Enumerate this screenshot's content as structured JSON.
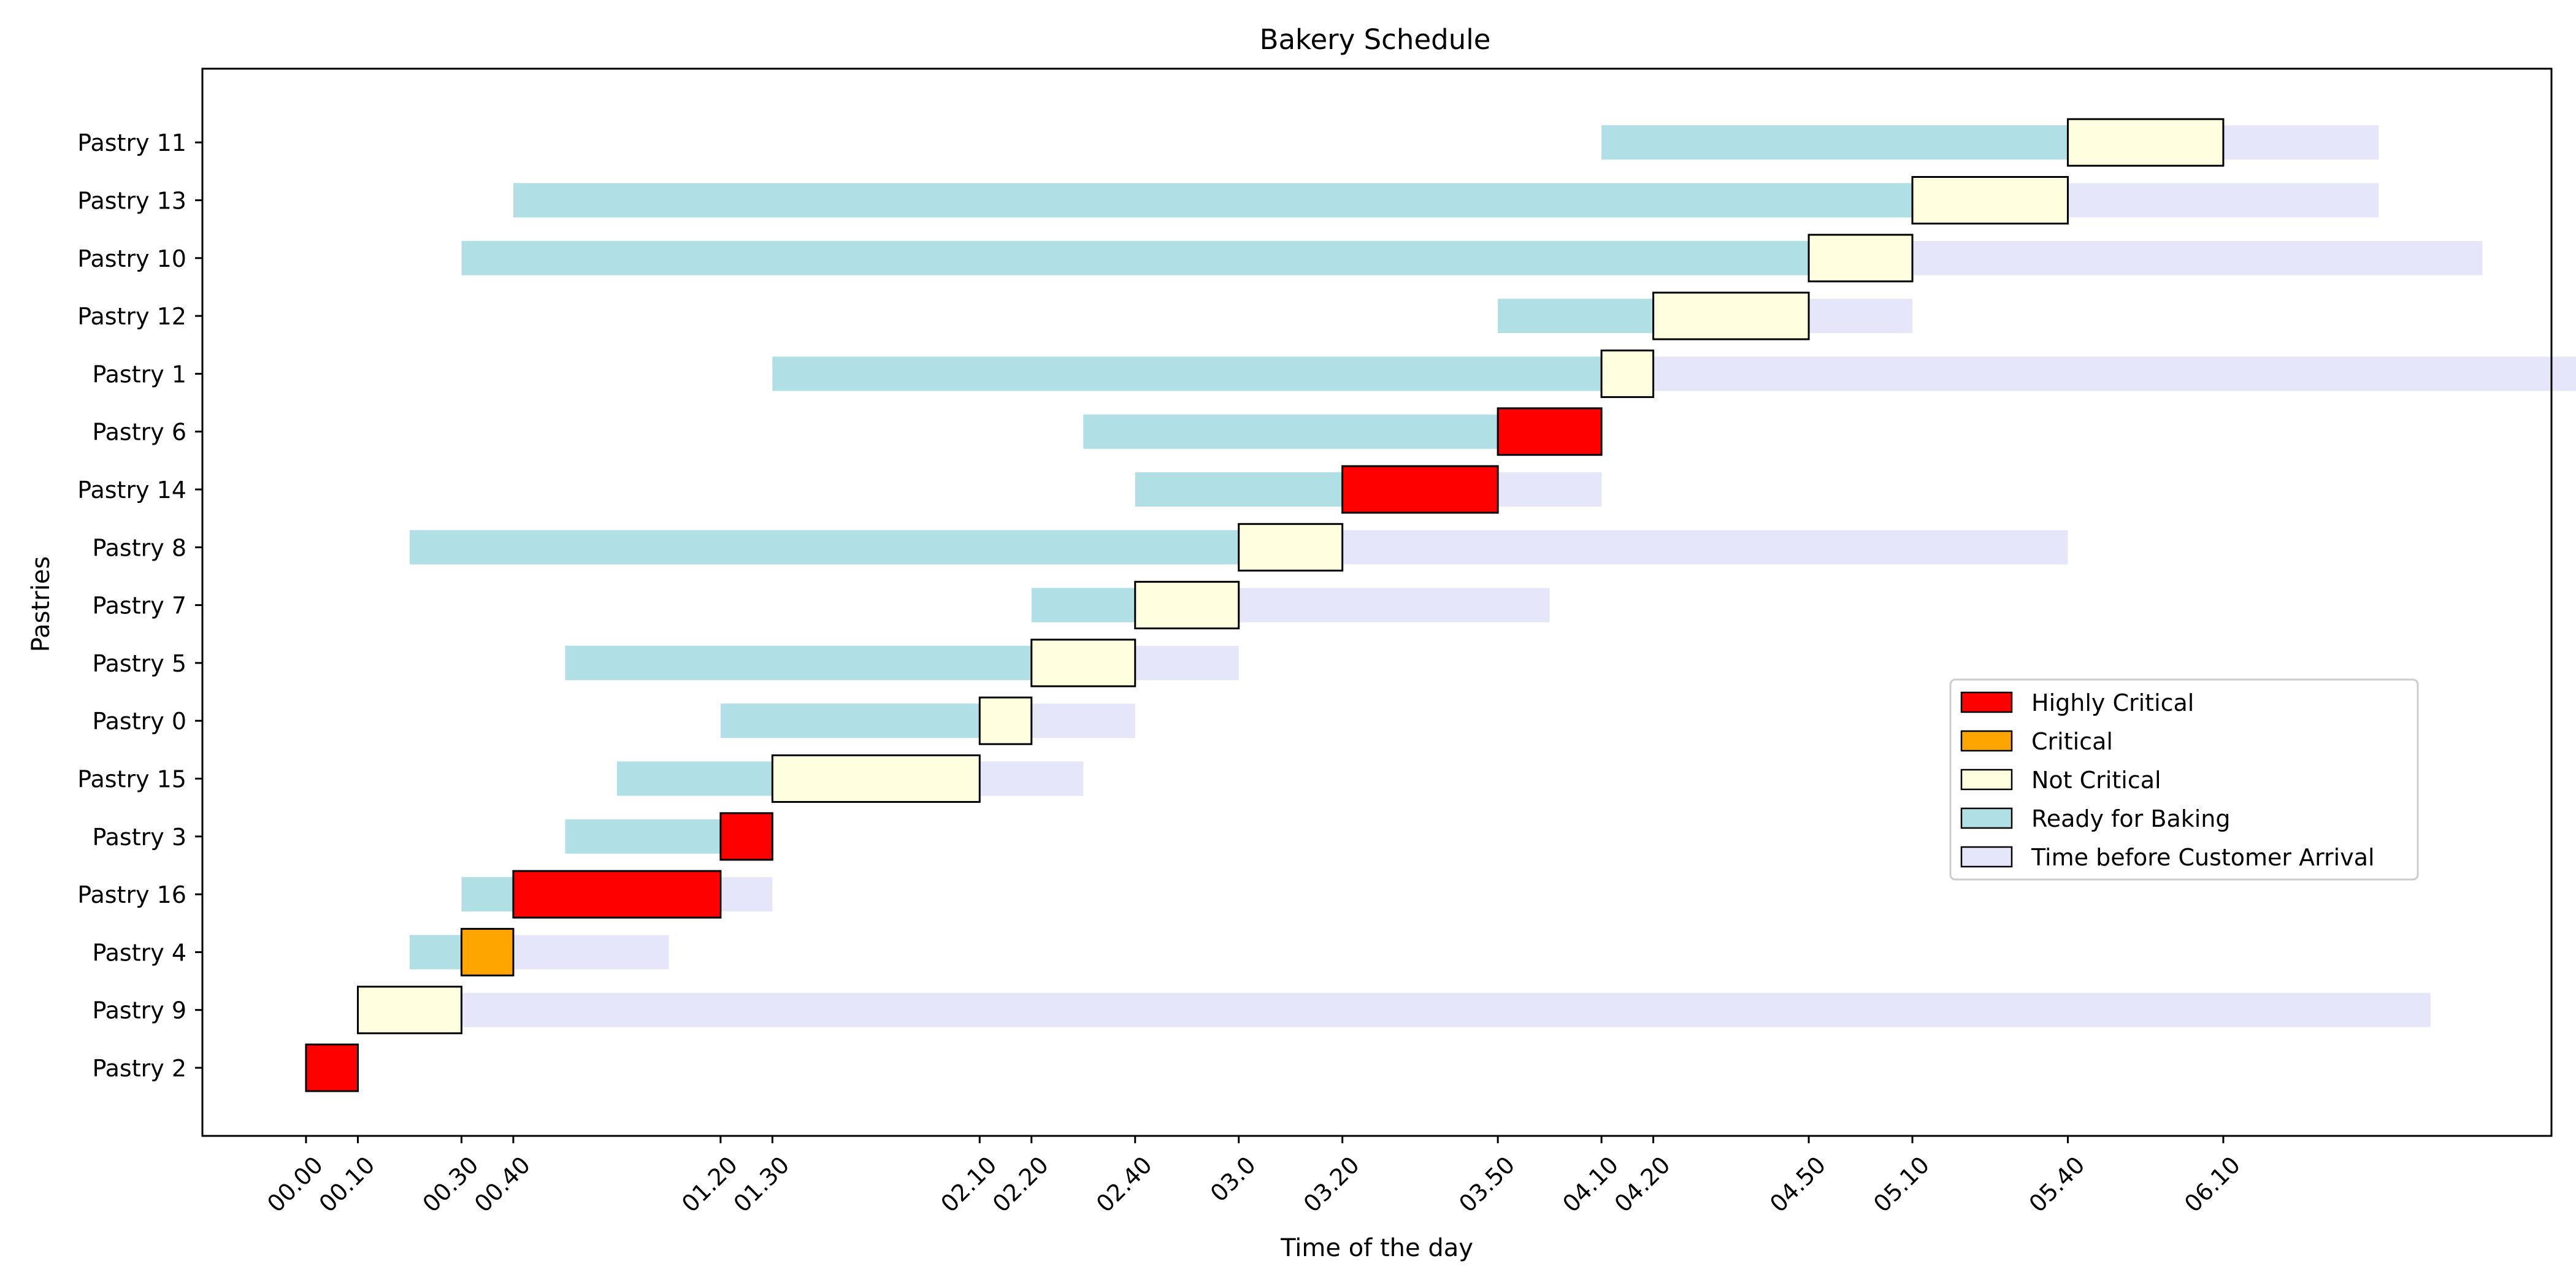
{
  "chart_data": {
    "type": "gantt",
    "title": "Bakery Schedule",
    "xlabel": "Time of the day",
    "ylabel": "Pastries",
    "x_unit": "minutes from 00:00",
    "xlim": [
      -60,
      1300
    ],
    "x_ticks": [
      {
        "value": 0,
        "label": "00.00"
      },
      {
        "value": 30,
        "label": "00.10"
      },
      {
        "value": 90,
        "label": "00.30"
      },
      {
        "value": 120,
        "label": "00.40"
      },
      {
        "value": 240,
        "label": "01.20"
      },
      {
        "value": 270,
        "label": "01.30"
      },
      {
        "value": 390,
        "label": "02.10"
      },
      {
        "value": 420,
        "label": "02.20"
      },
      {
        "value": 480,
        "label": "02.40"
      },
      {
        "value": 540,
        "label": "03.0"
      },
      {
        "value": 600,
        "label": "03.20"
      },
      {
        "value": 690,
        "label": "03.50"
      },
      {
        "value": 750,
        "label": "04.10"
      },
      {
        "value": 780,
        "label": "04.20"
      },
      {
        "value": 870,
        "label": "04.50"
      },
      {
        "value": 930,
        "label": "05.10"
      },
      {
        "value": 1020,
        "label": "05.40"
      },
      {
        "value": 1110,
        "label": "06.10"
      }
    ],
    "legend": {
      "placement": "center-right",
      "entries": [
        {
          "label": "Highly Critical",
          "color": "#ff0000"
        },
        {
          "label": "Critical",
          "color": "#ffa500"
        },
        {
          "label": "Not Critical",
          "color": "#ffffe0"
        },
        {
          "label": "Ready for Baking",
          "color": "#b0e0e6"
        },
        {
          "label": "Time before Customer Arrival",
          "color": "#e6e6fa"
        }
      ]
    },
    "rows": [
      {
        "label": "Pastry 11",
        "ready": [
          750,
          1020
        ],
        "task": [
          1020,
          1110
        ],
        "wait": [
          1110,
          1200
        ],
        "status": "Not Critical"
      },
      {
        "label": "Pastry 13",
        "ready": [
          120,
          930
        ],
        "task": [
          930,
          1020
        ],
        "wait": [
          1020,
          1200
        ],
        "status": "Not Critical"
      },
      {
        "label": "Pastry 10",
        "ready": [
          90,
          870
        ],
        "task": [
          870,
          930
        ],
        "wait": [
          930,
          1260
        ],
        "status": "Not Critical"
      },
      {
        "label": "Pastry 12",
        "ready": [
          690,
          780
        ],
        "task": [
          780,
          870
        ],
        "wait": [
          870,
          930
        ],
        "status": "Not Critical"
      },
      {
        "label": "Pastry 1",
        "ready": [
          270,
          750
        ],
        "task": [
          750,
          780
        ],
        "wait": [
          780,
          1350
        ],
        "status": "Not Critical"
      },
      {
        "label": "Pastry 6",
        "ready": [
          450,
          690
        ],
        "task": [
          690,
          750
        ],
        "wait": null,
        "status": "Highly Critical"
      },
      {
        "label": "Pastry 14",
        "ready": [
          480,
          600
        ],
        "task": [
          600,
          690
        ],
        "wait": [
          690,
          750
        ],
        "status": "Highly Critical"
      },
      {
        "label": "Pastry 8",
        "ready": [
          60,
          540
        ],
        "task": [
          540,
          600
        ],
        "wait": [
          600,
          1020
        ],
        "status": "Not Critical"
      },
      {
        "label": "Pastry 7",
        "ready": [
          420,
          480
        ],
        "task": [
          480,
          540
        ],
        "wait": [
          540,
          720
        ],
        "status": "Not Critical"
      },
      {
        "label": "Pastry 5",
        "ready": [
          150,
          420
        ],
        "task": [
          420,
          480
        ],
        "wait": [
          480,
          540
        ],
        "status": "Not Critical"
      },
      {
        "label": "Pastry 0",
        "ready": [
          240,
          390
        ],
        "task": [
          390,
          420
        ],
        "wait": [
          420,
          480
        ],
        "status": "Not Critical"
      },
      {
        "label": "Pastry 15",
        "ready": [
          180,
          270
        ],
        "task": [
          270,
          390
        ],
        "wait": [
          390,
          450
        ],
        "status": "Not Critical"
      },
      {
        "label": "Pastry 3",
        "ready": [
          150,
          240
        ],
        "task": [
          240,
          270
        ],
        "wait": null,
        "status": "Highly Critical"
      },
      {
        "label": "Pastry 16",
        "ready": [
          90,
          120
        ],
        "task": [
          120,
          240
        ],
        "wait": [
          240,
          270
        ],
        "status": "Highly Critical"
      },
      {
        "label": "Pastry 4",
        "ready": [
          60,
          90
        ],
        "task": [
          90,
          120
        ],
        "wait": [
          120,
          210
        ],
        "status": "Critical"
      },
      {
        "label": "Pastry 9",
        "ready": null,
        "task": [
          30,
          90
        ],
        "wait": [
          90,
          1230
        ],
        "status": "Not Critical"
      },
      {
        "label": "Pastry 2",
        "ready": null,
        "task": [
          0,
          30
        ],
        "wait": null,
        "status": "Highly Critical"
      }
    ]
  }
}
